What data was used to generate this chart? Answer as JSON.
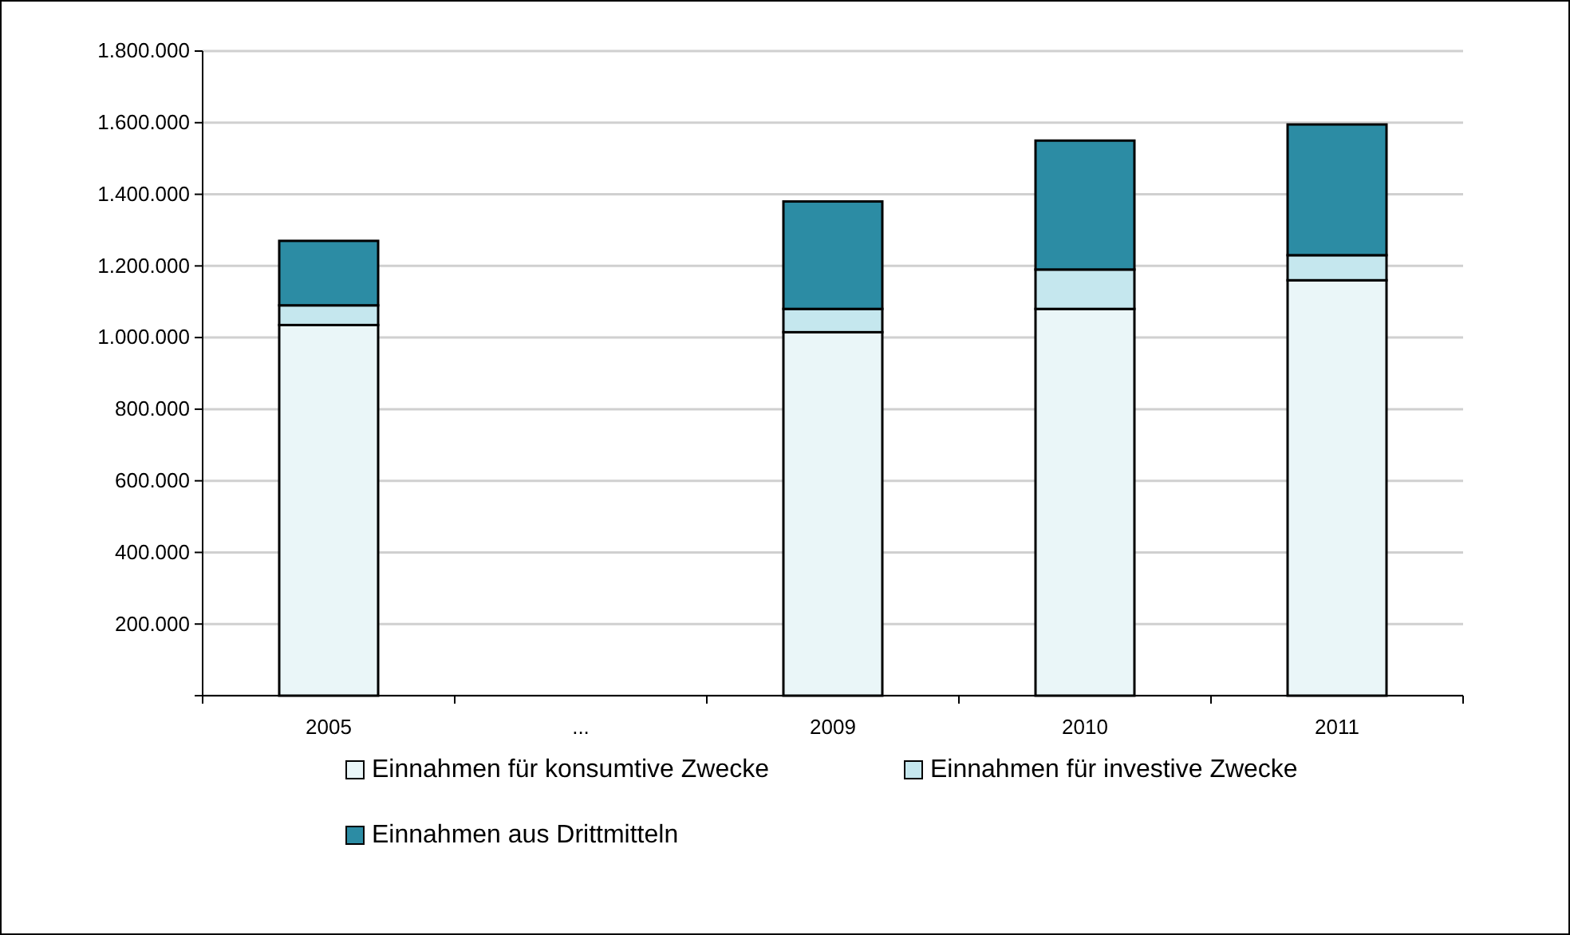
{
  "chart_data": {
    "type": "bar",
    "stacked": true,
    "categories": [
      "2005",
      "...",
      "2009",
      "2010",
      "2011"
    ],
    "series": [
      {
        "name": "Einnahmen für konsumtive Zwecke",
        "color": "#eaf6f8",
        "values": [
          1035000,
          null,
          1015000,
          1080000,
          1160000
        ]
      },
      {
        "name": "Einnahmen für investive Zwecke",
        "color": "#c5e7ee",
        "values": [
          55000,
          null,
          65000,
          110000,
          70000
        ]
      },
      {
        "name": "Einnahmen aus Drittmitteln",
        "color": "#2c8ca4",
        "values": [
          180000,
          null,
          300000,
          360000,
          365000
        ]
      }
    ],
    "ylim": [
      0,
      1800000
    ],
    "yticks": [
      {
        "value": 0,
        "label": null
      },
      {
        "value": 200000,
        "label": "200.000"
      },
      {
        "value": 400000,
        "label": "400.000"
      },
      {
        "value": 600000,
        "label": "600.000"
      },
      {
        "value": 800000,
        "label": "800.000"
      },
      {
        "value": 1000000,
        "label": "1.000.000"
      },
      {
        "value": 1200000,
        "label": "1.200.000"
      },
      {
        "value": 1400000,
        "label": "1.400.000"
      },
      {
        "value": 1600000,
        "label": "1.600.000"
      },
      {
        "value": 1800000,
        "label": "1.800.000"
      }
    ],
    "grid": "y",
    "legend": "bottom"
  }
}
